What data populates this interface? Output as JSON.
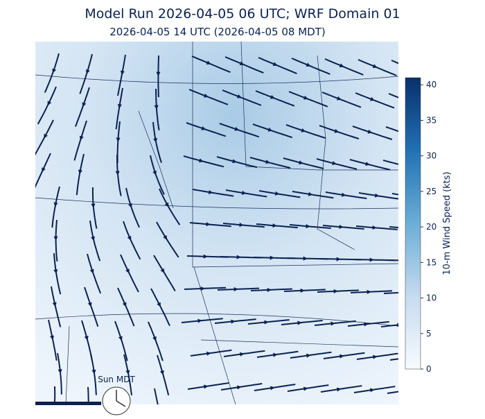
{
  "title": "Model Run 2026-04-05 06 UTC; WRF Domain 01",
  "subtitle": "2026-04-05 14 UTC  (2026-04-05 08 MDT)",
  "colorbar": {
    "label": "10-m Wind Speed (kts)",
    "lim": [
      0,
      41
    ],
    "ticks": [
      0,
      5,
      10,
      15,
      20,
      25,
      30,
      35,
      40
    ]
  },
  "clock": {
    "label": "Sun MDT"
  }
}
